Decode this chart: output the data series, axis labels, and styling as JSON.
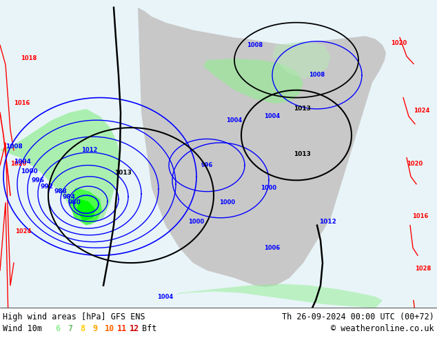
{
  "title_left": "High wind areas [hPa] GFS ENS",
  "title_right": "Th 26-09-2024 00:00 UTC (00+72)",
  "subtitle_left": "Wind 10m",
  "subtitle_right": "© weatheronline.co.uk",
  "legend_labels": [
    "6",
    "7",
    "8",
    "9",
    "10",
    "11",
    "12",
    "Bft"
  ],
  "legend_colors": [
    "#90ee90",
    "#6dbf6d",
    "#ffcc00",
    "#ff9900",
    "#ff6600",
    "#ff3300",
    "#cc0000",
    "#000000"
  ],
  "bg_color": "#e8f4f8",
  "land_color": "#c8c8c8",
  "sea_color": "#e8f4f8",
  "green_fill": "#90ee90",
  "bright_green": "#00ff00",
  "title_fontsize": 9,
  "label_fontsize": 8
}
